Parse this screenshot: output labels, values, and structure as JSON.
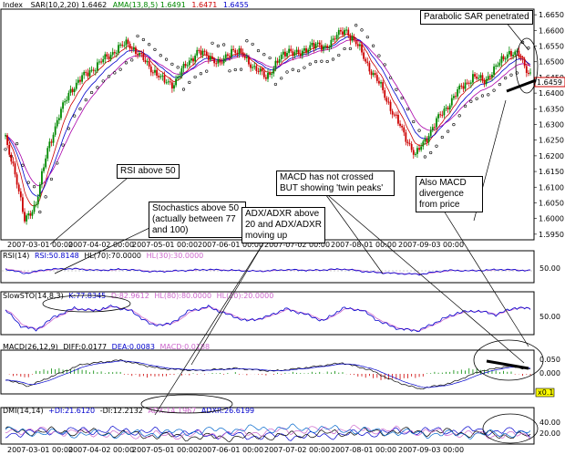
{
  "chart_data": [
    {
      "type": "candlestick",
      "panel": "price",
      "label": "Index",
      "indicators": [
        {
          "name": "SAR(10,2,20)",
          "value": "1.6462",
          "color": "#000000"
        },
        {
          "name": "AMA(13,8,5)",
          "value": "1.6491",
          "color": "#008800"
        },
        {
          "name": "",
          "value": "1.6471",
          "color": "#cc0000"
        },
        {
          "name": "",
          "value": "1.6455",
          "color": "#0000cc"
        }
      ],
      "y_ticks": [
        "1.6650",
        "1.6600",
        "1.6550",
        "1.6500",
        "1.6450",
        "1.6400",
        "1.6350",
        "1.6300",
        "1.6250",
        "1.6200",
        "1.6150",
        "1.6100",
        "1.6050",
        "1.6000",
        "1.5950"
      ],
      "ylim": [
        1.5935,
        1.6665
      ],
      "last_price_label": "1.6459",
      "x_labels": [
        "2007-03-01 00:00",
        "2007-04-02 00:00",
        "2007-05-01 00:00",
        "2007-06-01 00:00",
        "2007-07-02 00:00",
        "2007-08-01 00:00",
        "2007-09-03 00:00"
      ],
      "anchors": [
        [
          0,
          1.625
        ],
        [
          5,
          1.615
        ],
        [
          10,
          1.599
        ],
        [
          16,
          1.605
        ],
        [
          22,
          1.622
        ],
        [
          28,
          1.633
        ],
        [
          34,
          1.641
        ],
        [
          40,
          1.645
        ],
        [
          46,
          1.648
        ],
        [
          52,
          1.651
        ],
        [
          58,
          1.654
        ],
        [
          64,
          1.656
        ],
        [
          70,
          1.652
        ],
        [
          76,
          1.648
        ],
        [
          82,
          1.644
        ],
        [
          88,
          1.643
        ],
        [
          94,
          1.649
        ],
        [
          100,
          1.653
        ],
        [
          106,
          1.652
        ],
        [
          112,
          1.649
        ],
        [
          118,
          1.654
        ],
        [
          124,
          1.652
        ],
        [
          130,
          1.648
        ],
        [
          136,
          1.645
        ],
        [
          142,
          1.65
        ],
        [
          148,
          1.654
        ],
        [
          154,
          1.652
        ],
        [
          160,
          1.656
        ],
        [
          166,
          1.654
        ],
        [
          172,
          1.658
        ],
        [
          178,
          1.66
        ],
        [
          184,
          1.655
        ],
        [
          190,
          1.648
        ],
        [
          196,
          1.642
        ],
        [
          202,
          1.634
        ],
        [
          208,
          1.627
        ],
        [
          214,
          1.62
        ],
        [
          220,
          1.626
        ],
        [
          226,
          1.632
        ],
        [
          232,
          1.637
        ],
        [
          238,
          1.642
        ],
        [
          244,
          1.645
        ],
        [
          250,
          1.644
        ],
        [
          256,
          1.648
        ],
        [
          262,
          1.653
        ],
        [
          268,
          1.652
        ],
        [
          274,
          1.6459
        ]
      ]
    },
    {
      "type": "line",
      "panel": "rsi",
      "label": "RSI(14)",
      "indicators": [
        {
          "name": "RSI",
          "value": "50.8148",
          "color": "#0000cc"
        },
        {
          "name": "HL(70)",
          "value": "70.0000",
          "color": "#000000"
        },
        {
          "name": "HL(30)",
          "value": "30.0000",
          "color": "#cc66cc"
        }
      ],
      "y_ticks": [
        "50.00"
      ],
      "ylim": [
        0,
        100
      ],
      "anchors": [
        [
          0,
          58
        ],
        [
          10,
          38
        ],
        [
          22,
          57
        ],
        [
          34,
          60
        ],
        [
          48,
          52
        ],
        [
          62,
          57
        ],
        [
          76,
          46
        ],
        [
          90,
          50
        ],
        [
          104,
          56
        ],
        [
          118,
          52
        ],
        [
          132,
          48
        ],
        [
          146,
          55
        ],
        [
          160,
          52
        ],
        [
          176,
          58
        ],
        [
          190,
          44
        ],
        [
          204,
          38
        ],
        [
          216,
          34
        ],
        [
          230,
          52
        ],
        [
          244,
          50
        ],
        [
          258,
          56
        ],
        [
          274,
          51
        ]
      ]
    },
    {
      "type": "line",
      "panel": "stochastics",
      "label": "SlowSTO(14,8,3)",
      "indicators": [
        {
          "name": "K",
          "value": "77.8345",
          "color": "#0000cc"
        },
        {
          "name": "D",
          "value": "82.9612",
          "color": "#cc66cc"
        },
        {
          "name": "HL(80)",
          "value": "80.0000",
          "color": "#cc66cc"
        },
        {
          "name": "HL(20)",
          "value": "20.0000",
          "color": "#cc66cc"
        }
      ],
      "y_ticks": [
        "50.00"
      ],
      "ylim": [
        0,
        100
      ],
      "anchors": [
        [
          0,
          75
        ],
        [
          8,
          25
        ],
        [
          16,
          12
        ],
        [
          26,
          55
        ],
        [
          36,
          80
        ],
        [
          46,
          72
        ],
        [
          56,
          86
        ],
        [
          66,
          70
        ],
        [
          76,
          28
        ],
        [
          86,
          30
        ],
        [
          96,
          72
        ],
        [
          106,
          84
        ],
        [
          116,
          60
        ],
        [
          126,
          40
        ],
        [
          136,
          52
        ],
        [
          146,
          78
        ],
        [
          156,
          62
        ],
        [
          166,
          40
        ],
        [
          176,
          80
        ],
        [
          186,
          74
        ],
        [
          196,
          36
        ],
        [
          206,
          14
        ],
        [
          216,
          10
        ],
        [
          226,
          40
        ],
        [
          236,
          66
        ],
        [
          246,
          72
        ],
        [
          256,
          60
        ],
        [
          266,
          82
        ],
        [
          274,
          78
        ]
      ]
    },
    {
      "type": "bar",
      "panel": "macd",
      "label": "MACD(26,12,9)",
      "indicators": [
        {
          "name": "DIFF",
          "value": "0.0177",
          "color": "#000000"
        },
        {
          "name": "DEA",
          "value": "0.0083",
          "color": "#0000cc"
        },
        {
          "name": "MACD",
          "value": "0.0188",
          "color": "#cc66cc"
        }
      ],
      "y_ticks": [
        "0.050",
        "0.000"
      ],
      "ylim": [
        -0.07,
        0.08
      ],
      "side_label": "x0.1",
      "anchors": [
        [
          0,
          -0.02
        ],
        [
          12,
          -0.045
        ],
        [
          24,
          -0.01
        ],
        [
          40,
          0.035
        ],
        [
          60,
          0.05
        ],
        [
          80,
          0.02
        ],
        [
          100,
          0.012
        ],
        [
          120,
          0.02
        ],
        [
          140,
          0.01
        ],
        [
          160,
          0.025
        ],
        [
          176,
          0.04
        ],
        [
          190,
          0.015
        ],
        [
          204,
          -0.03
        ],
        [
          216,
          -0.055
        ],
        [
          232,
          -0.035
        ],
        [
          248,
          0.01
        ],
        [
          262,
          0.028
        ],
        [
          274,
          0.0177
        ]
      ]
    },
    {
      "type": "line",
      "panel": "dmi",
      "label": "DMI(14,14)",
      "indicators": [
        {
          "name": "+DI",
          "value": "21.6120",
          "color": "#0000cc"
        },
        {
          "name": "-DI",
          "value": "12.2132",
          "color": "#000000"
        },
        {
          "name": "ADX",
          "value": "14.1967",
          "color": "#cc66cc"
        },
        {
          "name": "ADXR",
          "value": "26.6199",
          "color": "#0000cc"
        }
      ],
      "y_ticks": [
        "40.00",
        "20.00"
      ],
      "ylim": [
        0,
        56
      ],
      "x_labels": [
        "2007-03-01 00:00",
        "2007-04-02 00:00",
        "2007-05-01 00:00",
        "2007-06-01 00:00",
        "2007-07-02 00:00",
        "2007-08-01 00:00",
        "2007-09-03 00:00"
      ]
    }
  ],
  "annotations": [
    {
      "id": "rsi-note",
      "text": "RSI above 50"
    },
    {
      "id": "sto-note",
      "text": "Stochastics above 50 (actually between 77 and 100)"
    },
    {
      "id": "adx-note",
      "text": "ADX/ADXR above 20 and ADX/ADXR moving up"
    },
    {
      "id": "macd-note",
      "text": "MACD has not crossed BUT showing 'twin peaks'"
    },
    {
      "id": "divergence-note",
      "text": "Also MACD divergence from price"
    },
    {
      "id": "sar-note",
      "text": "Parabolic SAR penetrated"
    }
  ]
}
